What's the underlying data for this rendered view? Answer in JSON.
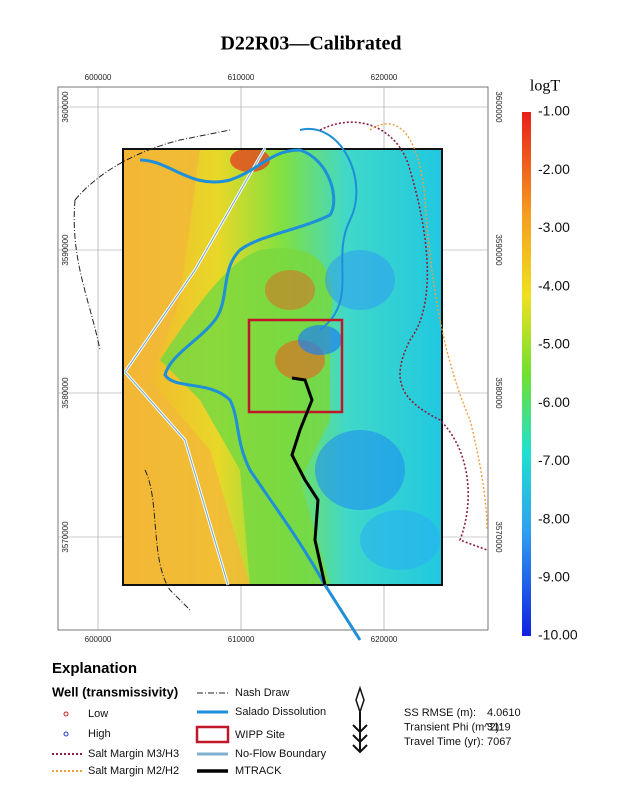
{
  "title": "D22R03—Calibrated",
  "map": {
    "x_labels": [
      "600000",
      "610000",
      "620000"
    ],
    "y_labels": [
      "3600000",
      "3590000",
      "3580000",
      "3570000"
    ]
  },
  "colorbar": {
    "title": "logT",
    "labels": [
      "-1.00",
      "-2.00",
      "-3.00",
      "-4.00",
      "-5.00",
      "-6.00",
      "-7.00",
      "-8.00",
      "-9.00",
      "-10.00"
    ]
  },
  "legend": {
    "heading": "Explanation",
    "subheading": "Well (transmissivity)",
    "items": [
      "Low",
      "High",
      "Salt Margin M3/H3",
      "Salt Margin M2/H2",
      "Nash Draw",
      "Salado Dissolution",
      "WIPP Site",
      "No-Flow Boundary",
      "MTRACK"
    ]
  },
  "stats": [
    {
      "label": "SS RMSE (m):",
      "value": "4.0610"
    },
    {
      "label": "Transient Phi (m^2):",
      "value": "3119"
    },
    {
      "label": "Travel Time (yr):",
      "value": "7067"
    }
  ]
}
